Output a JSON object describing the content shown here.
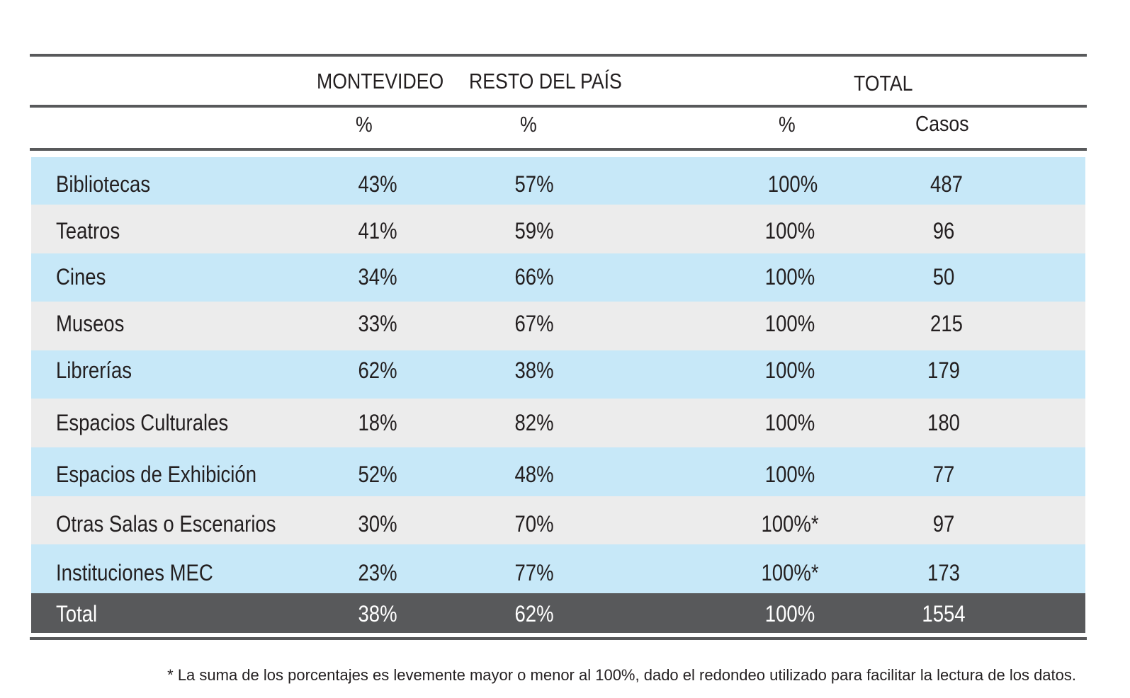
{
  "table": {
    "group_headers": {
      "montevideo": "MONTEVIDEO",
      "resto": "RESTO DEL PAÍS",
      "total": "TOTAL"
    },
    "sub_headers": {
      "montevideo_pct": "%",
      "resto_pct": "%",
      "total_pct": "%",
      "total_casos": "Casos"
    },
    "rows": [
      {
        "label": "Bibliotecas",
        "montevideo": "43%",
        "resto": "57%",
        "total_pct": "100%",
        "casos": "487"
      },
      {
        "label": "Teatros",
        "montevideo": "41%",
        "resto": "59%",
        "total_pct": "100%",
        "casos": "96"
      },
      {
        "label": "Cines",
        "montevideo": "34%",
        "resto": "66%",
        "total_pct": "100%",
        "casos": "50"
      },
      {
        "label": "Museos",
        "montevideo": "33%",
        "resto": "67%",
        "total_pct": "100%",
        "casos": "215"
      },
      {
        "label": "Librerías",
        "montevideo": "62%",
        "resto": "38%",
        "total_pct": "100%",
        "casos": "179"
      },
      {
        "label": "Espacios Culturales",
        "montevideo": "18%",
        "resto": "82%",
        "total_pct": "100%",
        "casos": "180"
      },
      {
        "label": "Espacios de Exhibición",
        "montevideo": "52%",
        "resto": "48%",
        "total_pct": "100%",
        "casos": "77"
      },
      {
        "label": "Otras Salas o Escenarios",
        "montevideo": "30%",
        "resto": "70%",
        "total_pct": "100%*",
        "casos": "97"
      },
      {
        "label": "Instituciones MEC",
        "montevideo": "23%",
        "resto": "77%",
        "total_pct": "100%*",
        "casos": "173"
      }
    ],
    "total_row": {
      "label": "Total",
      "montevideo": "38%",
      "resto": "62%",
      "total_pct": "100%",
      "casos": "1554"
    },
    "footnote": "* La suma de los porcentajes es levemente mayor o menor al 100%, dado el redondeo utilizado para facilitar la lectura de los datos."
  }
}
